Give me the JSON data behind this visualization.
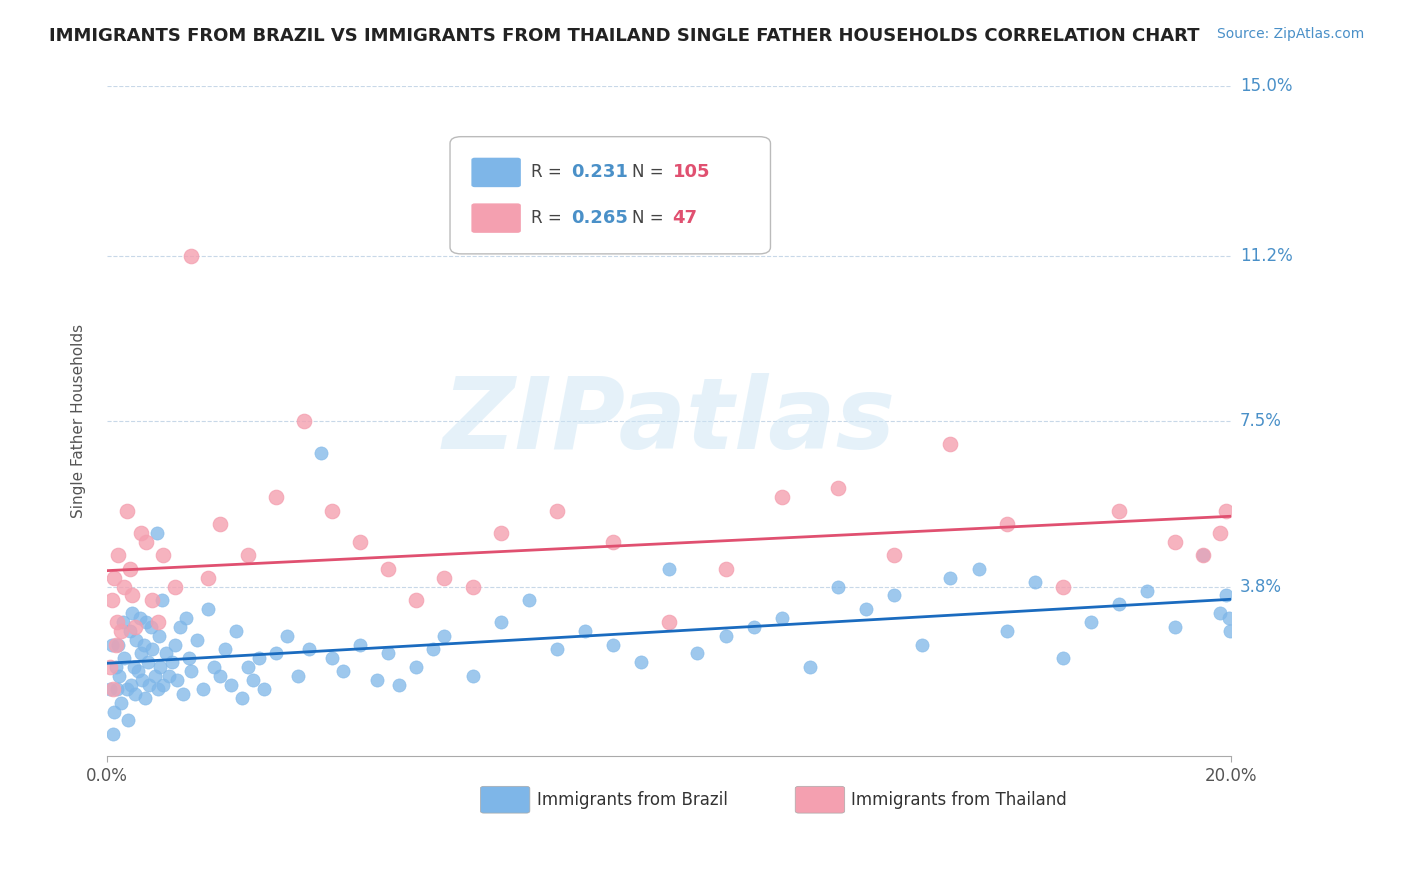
{
  "title": "IMMIGRANTS FROM BRAZIL VS IMMIGRANTS FROM THAILAND SINGLE FATHER HOUSEHOLDS CORRELATION CHART",
  "source_text": "Source: ZipAtlas.com",
  "ylabel": "Single Father Households",
  "xlim": [
    0.0,
    20.0
  ],
  "ylim": [
    0.0,
    15.0
  ],
  "brazil_R": 0.231,
  "brazil_N": 105,
  "thailand_R": 0.265,
  "thailand_N": 47,
  "brazil_color": "#7eb6e8",
  "thailand_color": "#f4a0b0",
  "brazil_line_color": "#1a6bbf",
  "thailand_line_color": "#e05070",
  "legend_brazil_label": "Immigrants from Brazil",
  "legend_thailand_label": "Immigrants from Thailand",
  "background_color": "#ffffff",
  "grid_color": "#c8d8e8",
  "watermark": "ZIPatlas",
  "title_fontsize": 13,
  "brazil_x": [
    0.05,
    0.08,
    0.1,
    0.12,
    0.15,
    0.18,
    0.2,
    0.22,
    0.25,
    0.28,
    0.3,
    0.35,
    0.38,
    0.4,
    0.42,
    0.45,
    0.48,
    0.5,
    0.52,
    0.55,
    0.58,
    0.6,
    0.62,
    0.65,
    0.68,
    0.7,
    0.72,
    0.75,
    0.78,
    0.8,
    0.85,
    0.88,
    0.9,
    0.92,
    0.95,
    0.98,
    1.0,
    1.05,
    1.1,
    1.15,
    1.2,
    1.25,
    1.3,
    1.35,
    1.4,
    1.45,
    1.5,
    1.6,
    1.7,
    1.8,
    1.9,
    2.0,
    2.1,
    2.2,
    2.3,
    2.4,
    2.5,
    2.6,
    2.7,
    2.8,
    3.0,
    3.2,
    3.4,
    3.6,
    3.8,
    4.0,
    4.2,
    4.5,
    4.8,
    5.0,
    5.2,
    5.5,
    5.8,
    6.0,
    6.5,
    7.0,
    7.5,
    8.0,
    8.5,
    9.0,
    9.5,
    10.0,
    10.5,
    11.0,
    11.5,
    12.0,
    12.5,
    13.0,
    13.5,
    14.0,
    14.5,
    15.0,
    15.5,
    16.0,
    16.5,
    17.0,
    17.5,
    18.0,
    18.5,
    19.0,
    19.5,
    19.8,
    19.9,
    19.95,
    19.98
  ],
  "brazil_y": [
    1.5,
    2.5,
    0.5,
    1.0,
    2.0,
    1.5,
    2.5,
    1.8,
    1.2,
    3.0,
    2.2,
    1.5,
    0.8,
    2.8,
    1.6,
    3.2,
    2.0,
    1.4,
    2.6,
    1.9,
    3.1,
    2.3,
    1.7,
    2.5,
    1.3,
    3.0,
    2.1,
    1.6,
    2.9,
    2.4,
    1.8,
    5.0,
    1.5,
    2.7,
    2.0,
    3.5,
    1.6,
    2.3,
    1.8,
    2.1,
    2.5,
    1.7,
    2.9,
    1.4,
    3.1,
    2.2,
    1.9,
    2.6,
    1.5,
    3.3,
    2.0,
    1.8,
    2.4,
    1.6,
    2.8,
    1.3,
    2.0,
    1.7,
    2.2,
    1.5,
    2.3,
    2.7,
    1.8,
    2.4,
    6.8,
    2.2,
    1.9,
    2.5,
    1.7,
    2.3,
    1.6,
    2.0,
    2.4,
    2.7,
    1.8,
    3.0,
    3.5,
    2.4,
    2.8,
    2.5,
    2.1,
    4.2,
    2.3,
    2.7,
    2.9,
    3.1,
    2.0,
    3.8,
    3.3,
    3.6,
    2.5,
    4.0,
    4.2,
    2.8,
    3.9,
    2.2,
    3.0,
    3.4,
    3.7,
    2.9,
    4.5,
    3.2,
    3.6,
    3.1,
    2.8
  ],
  "thailand_x": [
    0.05,
    0.08,
    0.1,
    0.12,
    0.15,
    0.18,
    0.2,
    0.25,
    0.3,
    0.35,
    0.4,
    0.45,
    0.5,
    0.6,
    0.7,
    0.8,
    0.9,
    1.0,
    1.2,
    1.5,
    1.8,
    2.0,
    2.5,
    3.0,
    3.5,
    4.0,
    4.5,
    5.0,
    5.5,
    6.0,
    6.5,
    7.0,
    8.0,
    9.0,
    10.0,
    11.0,
    12.0,
    13.0,
    14.0,
    15.0,
    16.0,
    17.0,
    18.0,
    19.0,
    19.5,
    19.8,
    19.9
  ],
  "thailand_y": [
    2.0,
    3.5,
    1.5,
    4.0,
    2.5,
    3.0,
    4.5,
    2.8,
    3.8,
    5.5,
    4.2,
    3.6,
    2.9,
    5.0,
    4.8,
    3.5,
    3.0,
    4.5,
    3.8,
    11.2,
    4.0,
    5.2,
    4.5,
    5.8,
    7.5,
    5.5,
    4.8,
    4.2,
    3.5,
    4.0,
    3.8,
    5.0,
    5.5,
    4.8,
    3.0,
    4.2,
    5.8,
    6.0,
    4.5,
    7.0,
    5.2,
    3.8,
    5.5,
    4.8,
    4.5,
    5.0,
    5.5
  ]
}
